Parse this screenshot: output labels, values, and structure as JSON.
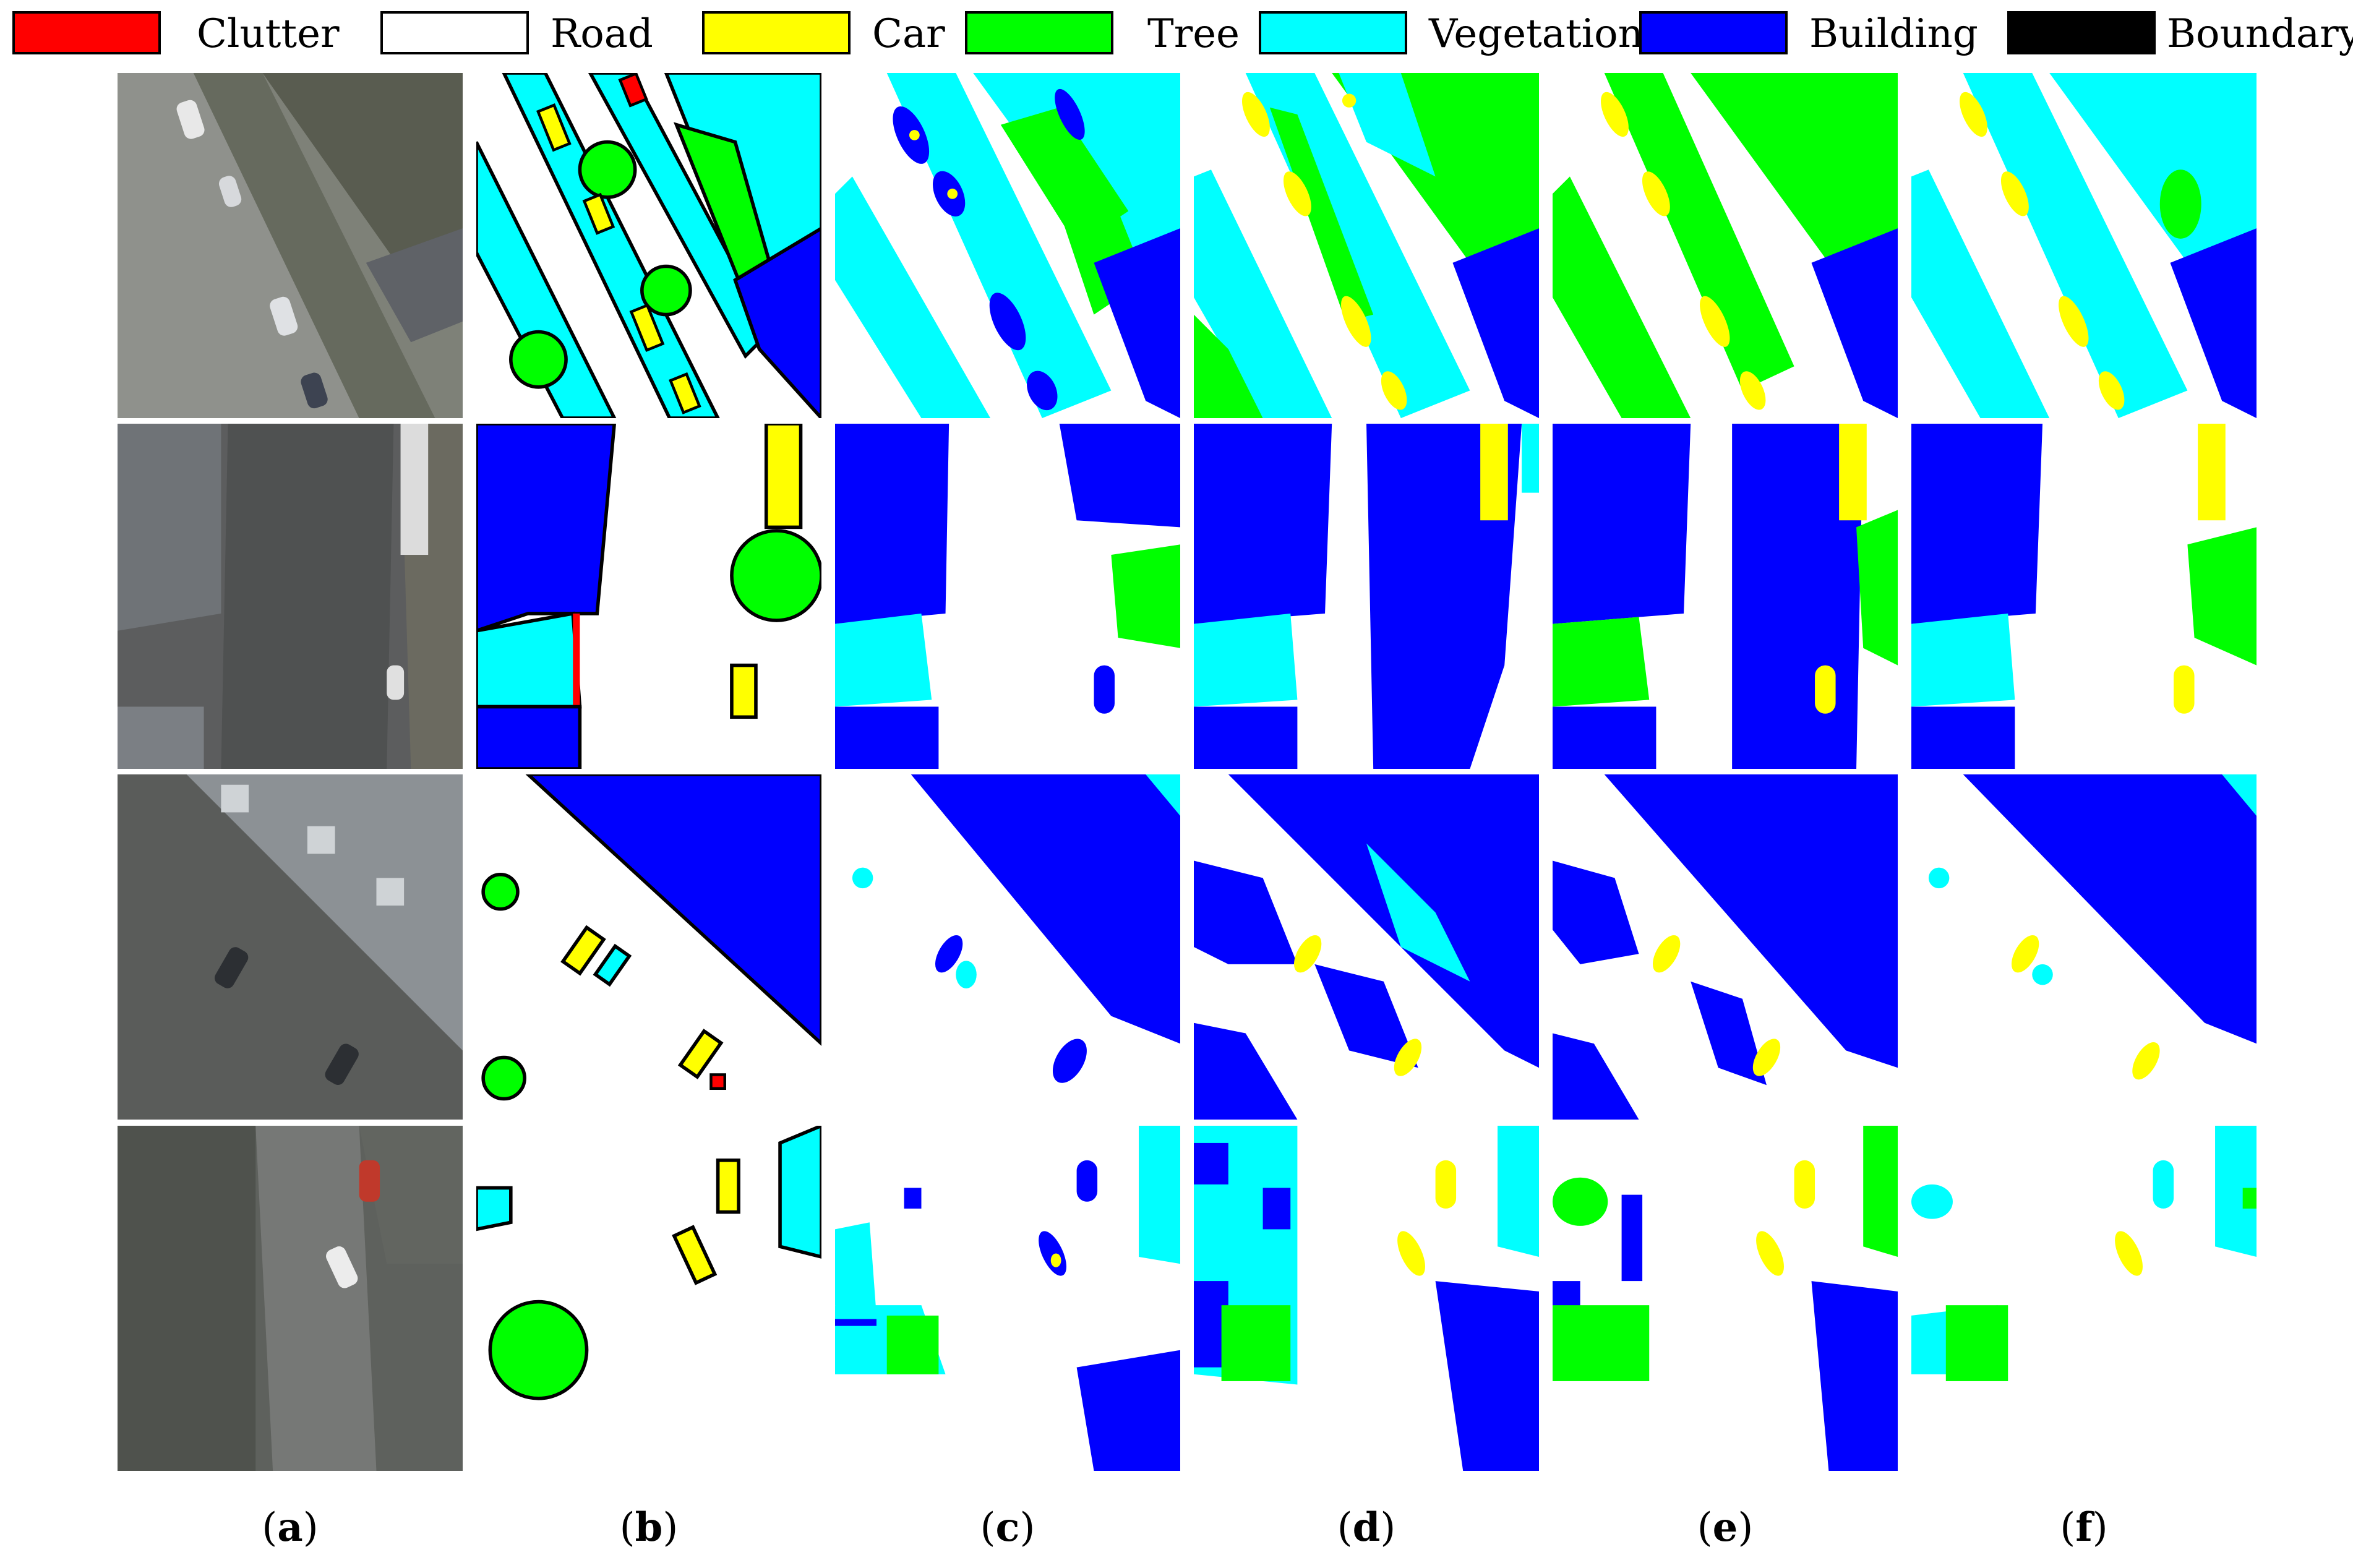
{
  "legend": [
    {
      "name": "Clutter",
      "color": "#ff0000"
    },
    {
      "name": "Road",
      "color": "#ffffff"
    },
    {
      "name": "Car",
      "color": "#ffff00"
    },
    {
      "name": "Tree",
      "color": "#00ff00"
    },
    {
      "name": "Vegetation",
      "color": "#00ffff"
    },
    {
      "name": "Building",
      "color": "#0000ff"
    },
    {
      "name": "Boundary",
      "color": "#000000"
    }
  ],
  "columns": [
    "a",
    "b",
    "c",
    "d",
    "e",
    "f"
  ],
  "colors": {
    "clutter": "#ff0000",
    "road": "#ffffff",
    "car": "#ffff00",
    "tree": "#00ff00",
    "vegetation": "#00ffff",
    "building": "#0000ff",
    "boundary": "#000000"
  }
}
